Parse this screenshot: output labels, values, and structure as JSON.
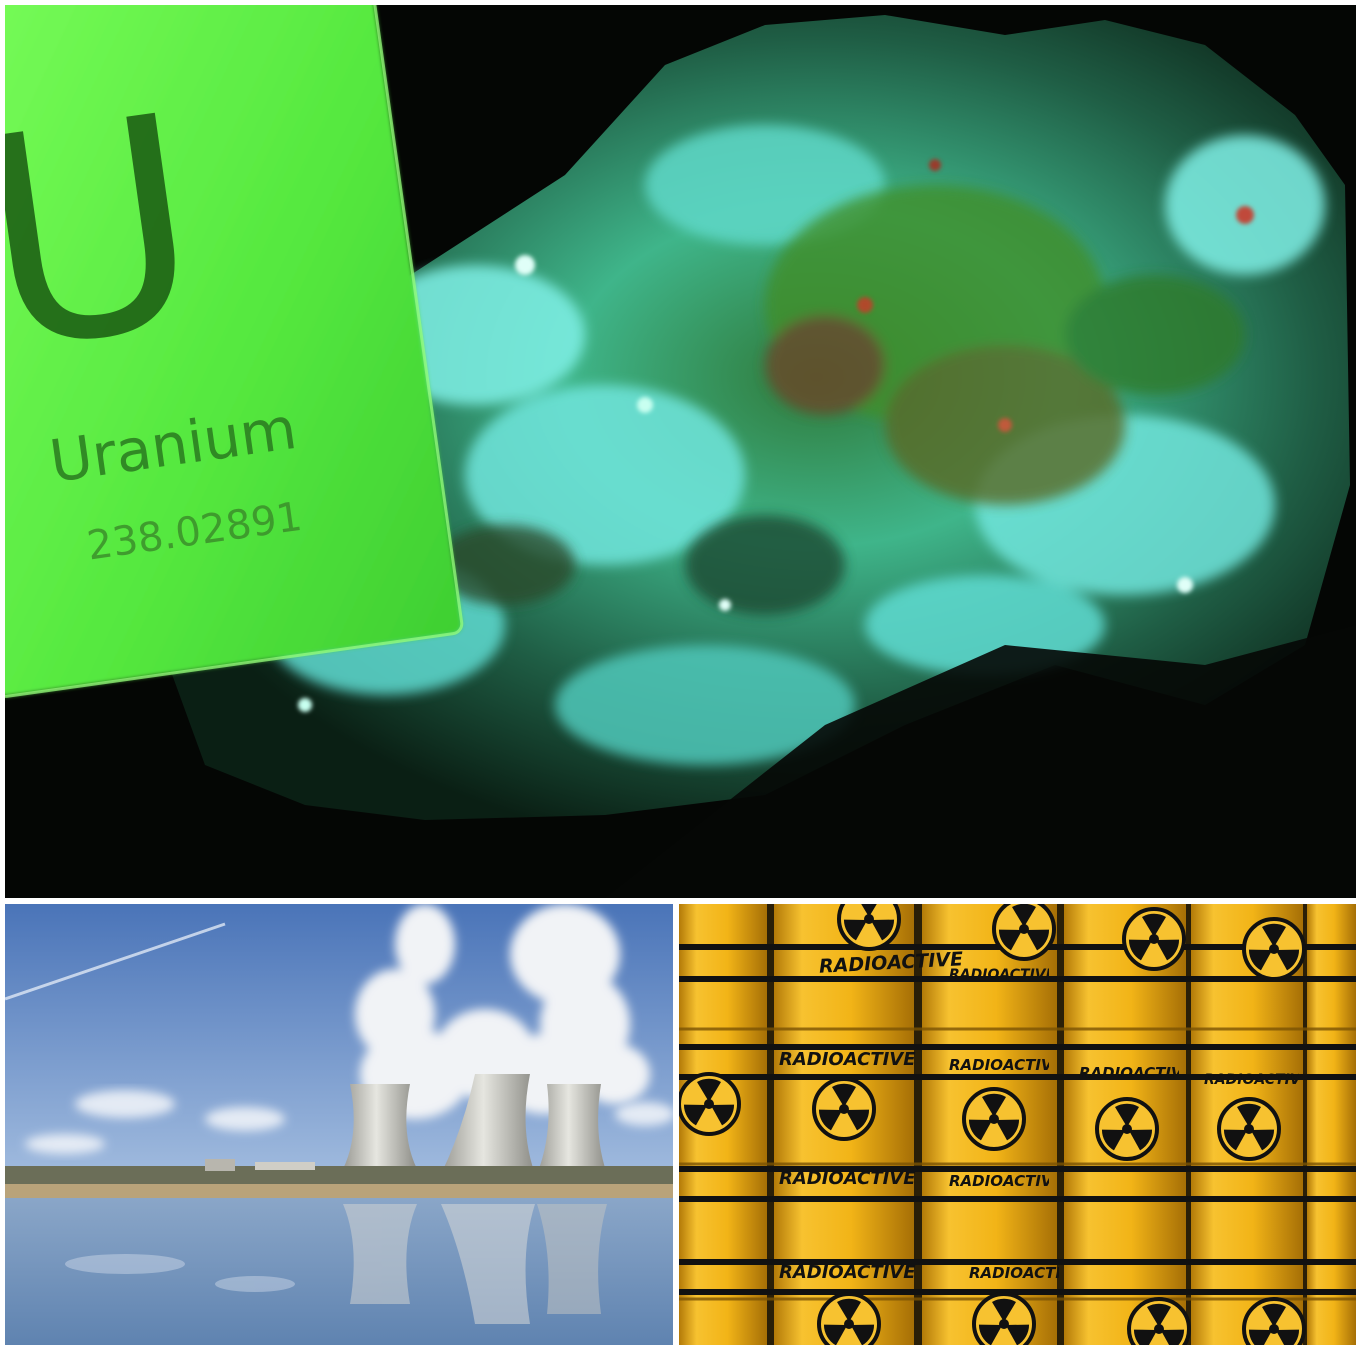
{
  "collage": {
    "top_photo": {
      "element_tile": {
        "symbol": "U",
        "name": "Uranium",
        "atomic_mass": "238.02891"
      }
    },
    "bottom_right_photo": {
      "barrel_label": "RADIOACTIVE"
    }
  },
  "colors": {
    "tile_green": "#5ef04a",
    "mineral_cyan": "#5fe0d0",
    "barrel_yellow": "#f2b417",
    "sky_blue": "#6f94c8"
  }
}
